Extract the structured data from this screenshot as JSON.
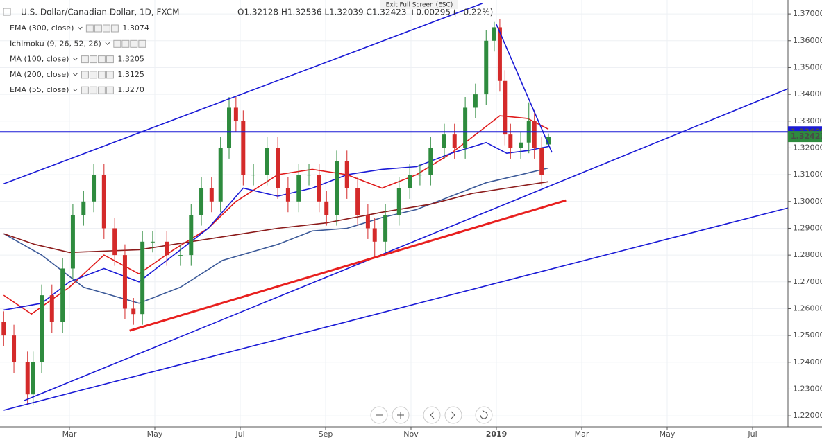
{
  "chart_data": {
    "type": "candlestick",
    "title": "U.S. Dollar/Canadian Dollar, 1D, FXCM",
    "ohlc_text": "O1.32128 H1.32536 L1.32039 C1.32423 +0.00295 (+0.22%)",
    "tooltip": "Exit Full Screen (ESC)",
    "indicators": [
      {
        "name": "EMA (300, close)",
        "value": "1.3074",
        "color": "#8b1a1a"
      },
      {
        "name": "Ichimoku (9, 26, 52, 26)"
      },
      {
        "name": "MA (100, close)",
        "value": "1.3205",
        "color": "#1a1ad6"
      },
      {
        "name": "MA (200, close)",
        "value": "1.3125",
        "color": "#3b5998"
      },
      {
        "name": "EMA (55, close)",
        "value": "1.3270",
        "color": "#e01b1b"
      }
    ],
    "x": [
      0.46,
      0.7,
      1.02,
      1.15,
      1.35,
      1.59,
      1.84,
      2.08,
      2.33,
      2.57,
      2.81,
      3.06,
      3.3,
      3.5,
      3.71,
      3.95,
      4.28,
      4.6,
      4.85,
      5.09,
      5.33,
      5.54,
      5.74,
      5.9,
      6.07,
      6.31,
      6.63,
      6.88,
      7.12,
      7.37,
      7.61,
      7.85,
      8.02,
      8.26,
      8.5,
      8.75,
      8.99,
      9.15,
      9.4,
      9.72,
      9.97,
      10.21,
      10.46,
      10.78,
      11.02,
      11.27,
      11.51,
      11.76,
      11.95,
      12.08,
      12.2,
      12.33,
      12.57,
      12.76,
      12.89,
      13.06,
      13.22
    ],
    "open": [
      1.255,
      1.25,
      1.24,
      1.228,
      1.24,
      1.265,
      1.255,
      1.275,
      1.295,
      1.3,
      1.31,
      1.29,
      1.28,
      1.26,
      1.258,
      1.285,
      1.285,
      1.28,
      1.28,
      1.295,
      1.305,
      1.3,
      1.32,
      1.335,
      1.33,
      1.31,
      1.31,
      1.32,
      1.305,
      1.3,
      1.31,
      1.31,
      1.3,
      1.295,
      1.315,
      1.305,
      1.295,
      1.29,
      1.285,
      1.295,
      1.305,
      1.31,
      1.31,
      1.32,
      1.325,
      1.32,
      1.335,
      1.34,
      1.36,
      1.365,
      1.345,
      1.325,
      1.32,
      1.322,
      1.33,
      1.32,
      1.32128
    ],
    "high": [
      1.259,
      1.254,
      1.244,
      1.244,
      1.269,
      1.269,
      1.279,
      1.299,
      1.304,
      1.314,
      1.314,
      1.294,
      1.284,
      1.264,
      1.289,
      1.289,
      1.289,
      1.284,
      1.299,
      1.309,
      1.309,
      1.324,
      1.339,
      1.339,
      1.334,
      1.314,
      1.324,
      1.324,
      1.309,
      1.314,
      1.314,
      1.314,
      1.304,
      1.319,
      1.319,
      1.309,
      1.299,
      1.294,
      1.299,
      1.309,
      1.314,
      1.314,
      1.324,
      1.329,
      1.329,
      1.339,
      1.344,
      1.364,
      1.367,
      1.368,
      1.349,
      1.329,
      1.326,
      1.337,
      1.334,
      1.324,
      1.32536
    ],
    "low": [
      1.246,
      1.236,
      1.224,
      1.224,
      1.236,
      1.251,
      1.251,
      1.271,
      1.291,
      1.296,
      1.286,
      1.276,
      1.256,
      1.254,
      1.254,
      1.281,
      1.276,
      1.276,
      1.276,
      1.291,
      1.296,
      1.296,
      1.316,
      1.326,
      1.306,
      1.306,
      1.306,
      1.301,
      1.296,
      1.296,
      1.306,
      1.296,
      1.291,
      1.291,
      1.301,
      1.291,
      1.286,
      1.279,
      1.281,
      1.291,
      1.301,
      1.306,
      1.306,
      1.316,
      1.316,
      1.316,
      1.331,
      1.336,
      1.356,
      1.341,
      1.321,
      1.316,
      1.316,
      1.318,
      1.316,
      1.306,
      1.32039
    ],
    "close": [
      1.25,
      1.24,
      1.228,
      1.24,
      1.265,
      1.255,
      1.275,
      1.295,
      1.3,
      1.31,
      1.29,
      1.28,
      1.26,
      1.258,
      1.285,
      1.285,
      1.28,
      1.28,
      1.295,
      1.305,
      1.3,
      1.32,
      1.335,
      1.33,
      1.31,
      1.31,
      1.32,
      1.305,
      1.3,
      1.31,
      1.31,
      1.3,
      1.295,
      1.315,
      1.305,
      1.295,
      1.29,
      1.285,
      1.295,
      1.305,
      1.31,
      1.31,
      1.32,
      1.325,
      1.32,
      1.335,
      1.34,
      1.36,
      1.365,
      1.345,
      1.325,
      1.32,
      1.322,
      1.33,
      1.32,
      1.31,
      1.32423
    ],
    "up_color": "#2e8b3e",
    "down_color": "#d42a2a",
    "series": [
      {
        "name": "EMA (55, close)",
        "color": "#e01b1b",
        "x": [
          0.46,
          1.11,
          2.0,
          2.81,
          3.63,
          4.44,
          5.25,
          5.9,
          6.88,
          7.69,
          8.5,
          9.32,
          10.13,
          10.94,
          11.76,
          12.08,
          12.73,
          13.22
        ],
        "values": [
          1.265,
          1.258,
          1.268,
          1.28,
          1.273,
          1.282,
          1.29,
          1.3,
          1.31,
          1.312,
          1.31,
          1.305,
          1.31,
          1.318,
          1.328,
          1.332,
          1.331,
          1.327
        ]
      },
      {
        "name": "MA (100, close)",
        "color": "#1a1ad6",
        "x": [
          0.46,
          1.35,
          2.0,
          2.81,
          3.63,
          4.44,
          5.25,
          6.07,
          6.88,
          7.69,
          8.5,
          9.32,
          10.13,
          10.94,
          11.76,
          12.24,
          12.73,
          13.22
        ],
        "values": [
          1.2595,
          1.262,
          1.27,
          1.275,
          1.27,
          1.28,
          1.29,
          1.305,
          1.302,
          1.305,
          1.31,
          1.312,
          1.313,
          1.318,
          1.322,
          1.318,
          1.319,
          1.3205
        ]
      },
      {
        "name": "MA (200, close)",
        "color": "#3b5998",
        "x": [
          0.46,
          1.35,
          2.33,
          3.63,
          4.6,
          5.58,
          6.88,
          7.69,
          8.5,
          9.32,
          10.13,
          10.94,
          11.76,
          12.57,
          13.22
        ],
        "values": [
          1.288,
          1.28,
          1.268,
          1.262,
          1.268,
          1.278,
          1.284,
          1.289,
          1.29,
          1.294,
          1.297,
          1.302,
          1.307,
          1.31,
          1.3125
        ]
      },
      {
        "name": "EMA (300, close)",
        "color": "#8b1a1a",
        "x": [
          0.46,
          1.19,
          2.0,
          3.63,
          5.25,
          6.88,
          8.02,
          9.32,
          10.46,
          11.43,
          12.24,
          13.22
        ],
        "values": [
          1.288,
          1.284,
          1.281,
          1.282,
          1.286,
          1.29,
          1.292,
          1.296,
          1.299,
          1.303,
          1.305,
          1.3074
        ]
      }
    ],
    "trendlines": [
      {
        "color": "#1a1ad6",
        "x": [
          0.46,
          11.67
        ],
        "values": [
          1.3066,
          1.3739
        ]
      },
      {
        "color": "#1a1ad6",
        "x": [
          0.46,
          18.83
        ],
        "values": [
          1.2221,
          1.2976
        ]
      },
      {
        "color": "#1a1ad6",
        "x": [
          0.94,
          18.83
        ],
        "values": [
          1.2257,
          1.3421
        ]
      },
      {
        "color": "#e8201f",
        "x": [
          3.41,
          13.63
        ],
        "values": [
          1.2518,
          1.3004
        ]
      },
      {
        "color": "#1a1ad6",
        "x": [
          12.0,
          13.3
        ],
        "values": [
          1.3661,
          1.3183
        ]
      }
    ],
    "price_line": {
      "value": 1.326,
      "label": "1.32600",
      "color": "#1a1ad6"
    },
    "last_price": {
      "value": 1.32423,
      "label": "1.32423",
      "color": "#2e8b3e"
    },
    "xlim": [
      0.374,
      18.829
    ],
    "ylim": [
      1.2159,
      1.3752
    ],
    "xticks": [
      {
        "value": 2,
        "label": "Mar"
      },
      {
        "value": 4,
        "label": "May"
      },
      {
        "value": 6,
        "label": "Jul"
      },
      {
        "value": 8,
        "label": "Sep"
      },
      {
        "value": 10,
        "label": "Nov"
      },
      {
        "value": 12,
        "label": "2019"
      },
      {
        "value": 14,
        "label": "Mar"
      },
      {
        "value": 16,
        "label": "May"
      },
      {
        "value": 18,
        "label": "Jul"
      }
    ],
    "yticks": [
      {
        "value": 1.22,
        "label": "1.22000"
      },
      {
        "value": 1.23,
        "label": "1.23000"
      },
      {
        "value": 1.24,
        "label": "1.24000"
      },
      {
        "value": 1.25,
        "label": "1.25000"
      },
      {
        "value": 1.26,
        "label": "1.26000"
      },
      {
        "value": 1.27,
        "label": "1.27000"
      },
      {
        "value": 1.28,
        "label": "1.28000"
      },
      {
        "value": 1.29,
        "label": "1.29000"
      },
      {
        "value": 1.3,
        "label": "1.30000"
      },
      {
        "value": 1.31,
        "label": "1.31000"
      },
      {
        "value": 1.32,
        "label": "1.32000"
      },
      {
        "value": 1.33,
        "label": "1.33000"
      },
      {
        "value": 1.34,
        "label": "1.34000"
      },
      {
        "value": 1.35,
        "label": "1.35000"
      },
      {
        "value": 1.36,
        "label": "1.36000"
      },
      {
        "value": 1.37,
        "label": "1.37000"
      }
    ],
    "grid": true
  }
}
